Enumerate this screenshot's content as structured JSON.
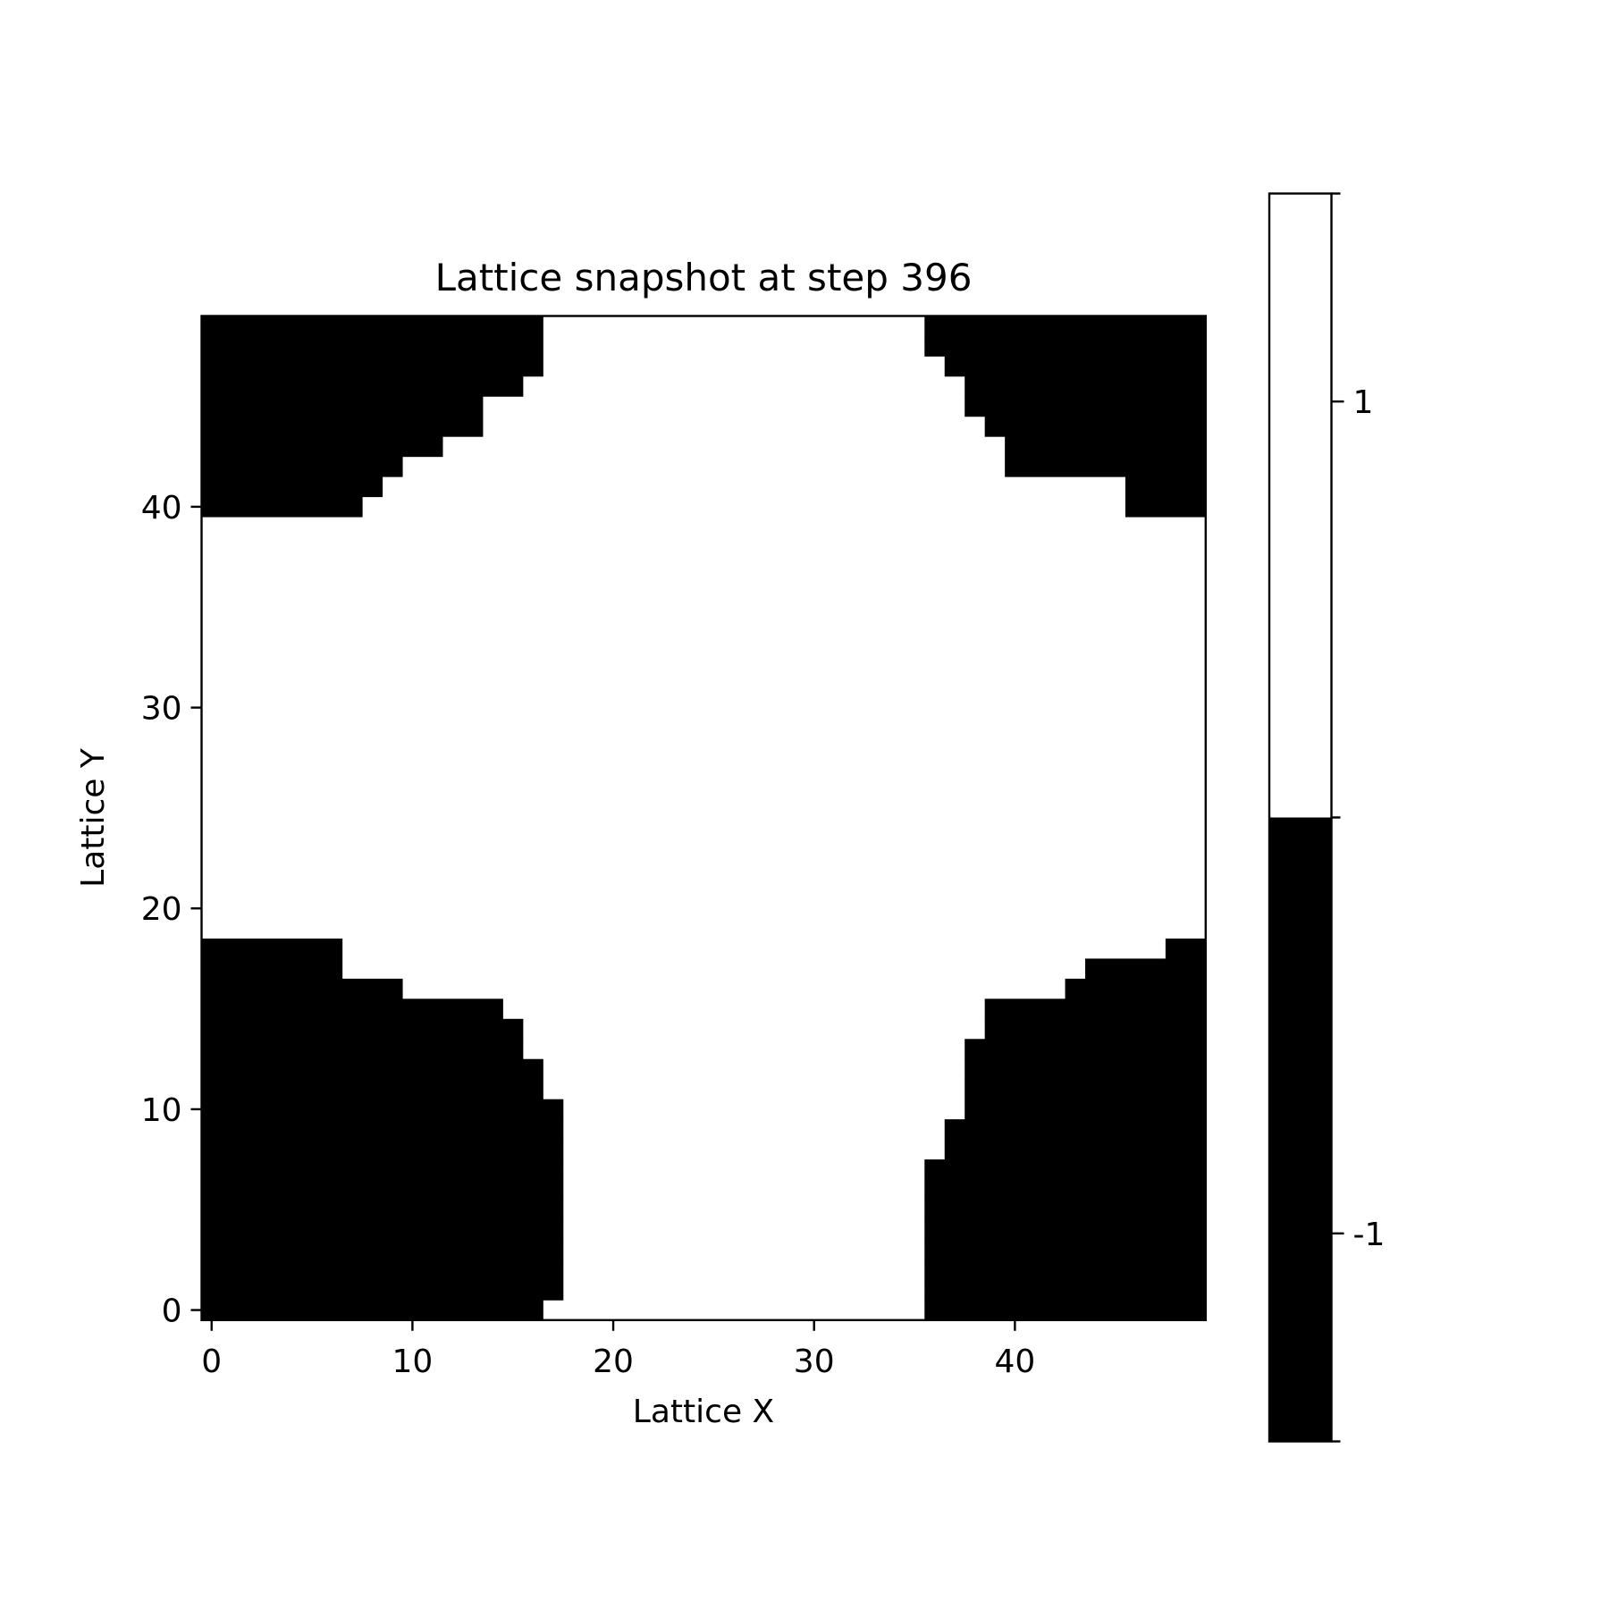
{
  "chart_data": {
    "type": "heatmap",
    "title": "Lattice snapshot at step 396",
    "xlabel": "Lattice X",
    "ylabel": "Lattice Y",
    "grid_size": [
      50,
      50
    ],
    "xlim": [
      -0.5,
      49.5
    ],
    "ylim": [
      -0.5,
      49.5
    ],
    "origin": "lower",
    "xticks": [
      0,
      10,
      20,
      30,
      40
    ],
    "yticks": [
      0,
      10,
      20,
      30,
      40
    ],
    "grid": false,
    "colormap": {
      "-1": "#000000",
      "1": "#ffffff"
    },
    "colorbar": {
      "ticks": [
        1,
        -1
      ],
      "labels": [
        "1",
        "-1"
      ],
      "vmin": -1.5,
      "vmax": 1.5
    },
    "default_value": 1,
    "description_of_encoding": "Each row lists inclusive x ranges [x0, x1] whose spin value is -1; all other cells are +1.",
    "minus_one_runs_by_row": {
      "0": [
        [
          0,
          16
        ],
        [
          36,
          49
        ]
      ],
      "1": [
        [
          0,
          17
        ],
        [
          36,
          49
        ]
      ],
      "2": [
        [
          0,
          17
        ],
        [
          36,
          49
        ]
      ],
      "3": [
        [
          0,
          17
        ],
        [
          36,
          49
        ]
      ],
      "4": [
        [
          0,
          17
        ],
        [
          36,
          49
        ]
      ],
      "5": [
        [
          0,
          17
        ],
        [
          36,
          49
        ]
      ],
      "6": [
        [
          0,
          17
        ],
        [
          36,
          49
        ]
      ],
      "7": [
        [
          0,
          17
        ],
        [
          36,
          49
        ]
      ],
      "8": [
        [
          0,
          17
        ],
        [
          37,
          49
        ]
      ],
      "9": [
        [
          0,
          17
        ],
        [
          37,
          49
        ]
      ],
      "10": [
        [
          0,
          17
        ],
        [
          38,
          49
        ]
      ],
      "11": [
        [
          0,
          16
        ],
        [
          38,
          49
        ]
      ],
      "12": [
        [
          0,
          16
        ],
        [
          38,
          49
        ]
      ],
      "13": [
        [
          0,
          15
        ],
        [
          38,
          49
        ]
      ],
      "14": [
        [
          0,
          15
        ],
        [
          39,
          49
        ]
      ],
      "15": [
        [
          0,
          14
        ],
        [
          39,
          49
        ]
      ],
      "16": [
        [
          0,
          9
        ],
        [
          43,
          49
        ]
      ],
      "17": [
        [
          0,
          6
        ],
        [
          44,
          49
        ]
      ],
      "18": [
        [
          0,
          6
        ],
        [
          48,
          49
        ]
      ],
      "40": [
        [
          0,
          7
        ],
        [
          46,
          49
        ]
      ],
      "41": [
        [
          0,
          8
        ],
        [
          46,
          49
        ]
      ],
      "42": [
        [
          0,
          9
        ],
        [
          40,
          49
        ]
      ],
      "43": [
        [
          0,
          11
        ],
        [
          40,
          49
        ]
      ],
      "44": [
        [
          0,
          13
        ],
        [
          39,
          49
        ]
      ],
      "45": [
        [
          0,
          13
        ],
        [
          38,
          49
        ]
      ],
      "46": [
        [
          0,
          15
        ],
        [
          38,
          49
        ]
      ],
      "47": [
        [
          0,
          16
        ],
        [
          37,
          49
        ]
      ],
      "48": [
        [
          0,
          16
        ],
        [
          36,
          49
        ]
      ],
      "49": [
        [
          0,
          16
        ],
        [
          36,
          49
        ]
      ]
    }
  }
}
